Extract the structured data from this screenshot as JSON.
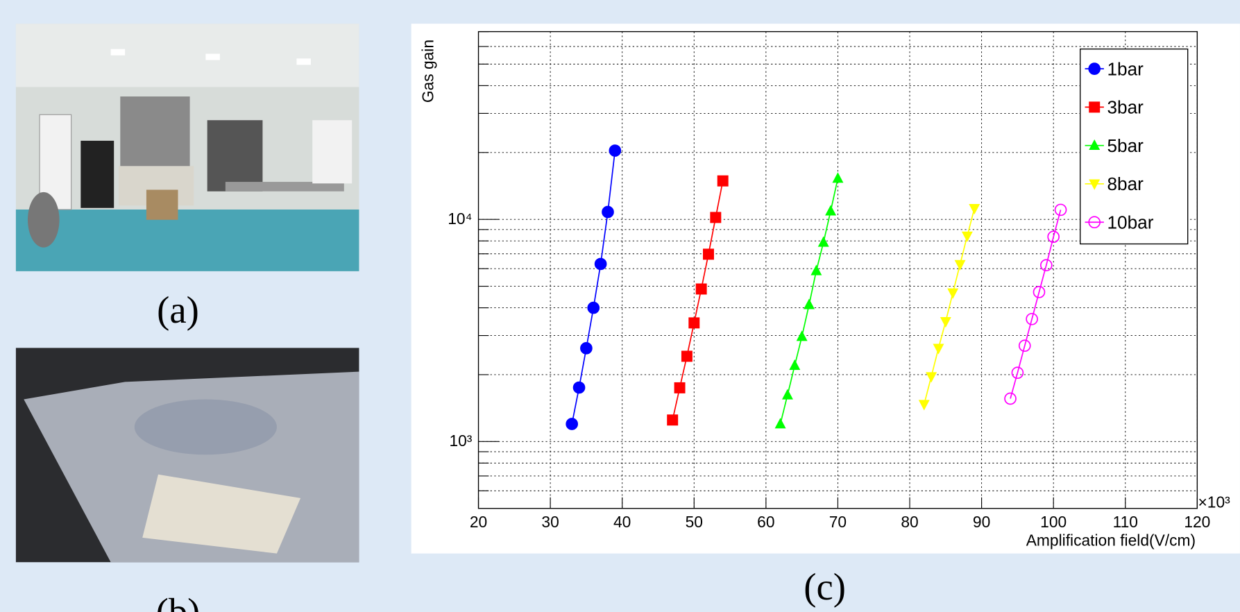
{
  "captions": [
    "(a)",
    "(b)",
    "(c)"
  ],
  "chart_data": {
    "type": "line",
    "x_label": "Amplification field(V/cm)",
    "y_label": "Gas gain",
    "x_multiplier": "×10³",
    "xlim": [
      20,
      120
    ],
    "xticks": [
      20,
      30,
      40,
      50,
      60,
      70,
      80,
      90,
      100,
      110,
      120
    ],
    "ylim": [
      500,
      70000
    ],
    "log_y": true,
    "yticks": [
      {
        "value": 1000,
        "label": "10³"
      },
      {
        "value": 10000,
        "label": "10⁴"
      }
    ],
    "y_minor_ticks": [
      600,
      700,
      800,
      900,
      2000,
      3000,
      4000,
      5000,
      6000,
      7000,
      8000,
      9000,
      20000,
      30000,
      40000,
      50000,
      60000,
      70000
    ],
    "grid": true,
    "legend": "upper right",
    "series": [
      {
        "name": "1bar",
        "color": "#0000ff",
        "marker": "circle",
        "x": [
          33,
          34,
          35,
          36,
          37,
          38,
          39
        ],
        "values": [
          1200,
          1750,
          2630,
          4000,
          6300,
          10800,
          20400
        ]
      },
      {
        "name": "3bar",
        "color": "#ff0000",
        "marker": "square",
        "x": [
          47,
          48,
          49,
          50,
          51,
          52,
          53,
          54
        ],
        "values": [
          1250,
          1745,
          2420,
          3420,
          4860,
          6970,
          10200,
          14900
        ]
      },
      {
        "name": "5bar",
        "color": "#00ff00",
        "marker": "triangle-up",
        "x": [
          62,
          63,
          64,
          65,
          66,
          67,
          68,
          69,
          70
        ],
        "values": [
          1200,
          1620,
          2200,
          2970,
          4130,
          5870,
          7880,
          10900,
          15300
        ]
      },
      {
        "name": "8bar",
        "color": "#ffff00",
        "marker": "triangle-down",
        "x": [
          82,
          83,
          84,
          85,
          86,
          87,
          88,
          89
        ],
        "values": [
          1470,
          1960,
          2630,
          3470,
          4670,
          6270,
          8420,
          11200
        ]
      },
      {
        "name": "10bar",
        "color": "#ff00ff",
        "marker": "open-circle",
        "x": [
          94,
          95,
          96,
          97,
          98,
          99,
          100,
          101
        ],
        "values": [
          1560,
          2040,
          2700,
          3560,
          4710,
          6220,
          8350,
          11040
        ]
      }
    ]
  }
}
